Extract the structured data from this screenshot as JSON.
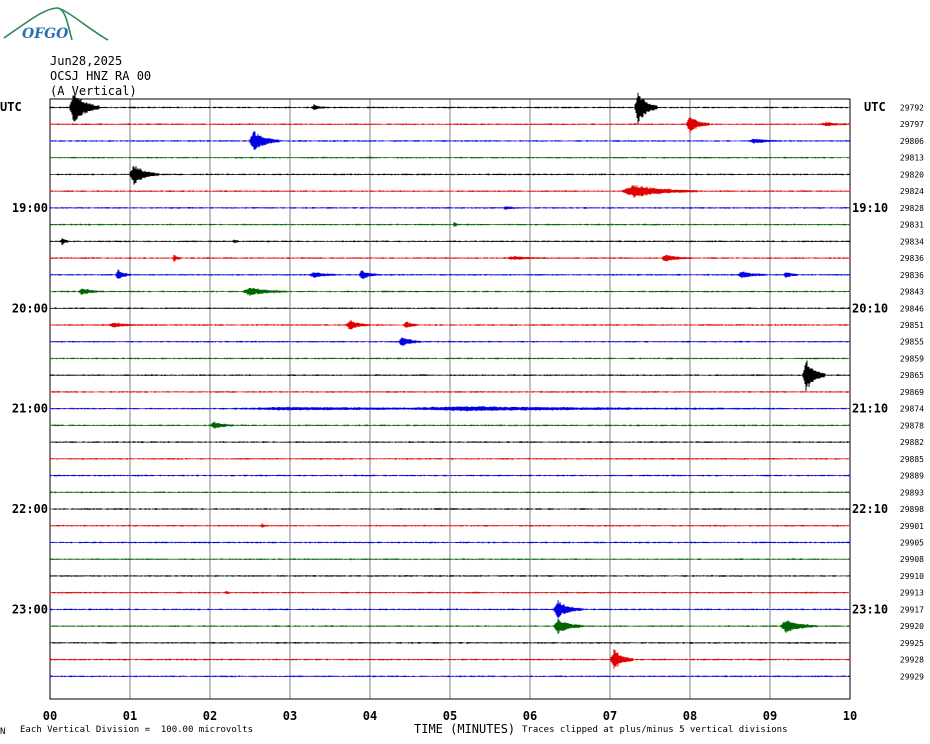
{
  "header": {
    "date": "Jun28,2025",
    "station": "OCSJ HNZ RA 00",
    "component": "(A Vertical)",
    "utc_left": "UTC",
    "utc_right": "UTC"
  },
  "logo": {
    "text": "OFGO",
    "color": "#2a6fb0"
  },
  "footer": {
    "scale_note": "Each Vertical Division =  100.00 microvolts",
    "clip_note": "Traces clipped at plus/minus 5 vertical divisions",
    "corner_mark": "N"
  },
  "colors": {
    "black": "#000000",
    "red": "#e00000",
    "blue": "#0000e0",
    "green": "#006400",
    "grid": "#808080"
  },
  "chart_data": {
    "type": "line",
    "xlabel": "TIME (MINUTES)",
    "x_ticks": [
      "00",
      "01",
      "02",
      "03",
      "04",
      "05",
      "06",
      "07",
      "08",
      "09",
      "10"
    ],
    "xlim": [
      0,
      10
    ],
    "color_cycle": [
      "black",
      "red",
      "blue",
      "green"
    ],
    "left_time_labels": [
      {
        "row": 6,
        "label": "19:00"
      },
      {
        "row": 12,
        "label": "20:00"
      },
      {
        "row": 18,
        "label": "21:00"
      },
      {
        "row": 24,
        "label": "22:00"
      },
      {
        "row": 30,
        "label": "23:00"
      }
    ],
    "right_time_labels": [
      {
        "row": 6,
        "label": "19:10"
      },
      {
        "row": 12,
        "label": "20:10"
      },
      {
        "row": 18,
        "label": "21:10"
      },
      {
        "row": 24,
        "label": "22:10"
      },
      {
        "row": 30,
        "label": "23:10"
      }
    ],
    "right_counts": [
      "29792",
      "29797",
      "29806",
      "29813",
      "29820",
      "29824",
      "29828",
      "29831",
      "29834",
      "29836",
      "29836",
      "29843",
      "29846",
      "29851",
      "29855",
      "29859",
      "29865",
      "29869",
      "29874",
      "29878",
      "29882",
      "29885",
      "29889",
      "29893",
      "29898",
      "29901",
      "29905",
      "29908",
      "29910",
      "29913",
      "29917",
      "29920",
      "29925",
      "29928",
      "29929"
    ],
    "events": [
      {
        "row": 0,
        "x": 0.3,
        "amp": 5,
        "dur": 0.2
      },
      {
        "row": 0,
        "x": 7.35,
        "amp": 5,
        "dur": 0.15
      },
      {
        "row": 0,
        "x": 3.3,
        "amp": 0.8,
        "dur": 0.1
      },
      {
        "row": 1,
        "x": 8.0,
        "amp": 2.5,
        "dur": 0.15
      },
      {
        "row": 1,
        "x": 9.7,
        "amp": 0.5,
        "dur": 0.2
      },
      {
        "row": 2,
        "x": 2.55,
        "amp": 3,
        "dur": 0.2
      },
      {
        "row": 2,
        "x": 8.8,
        "amp": 0.6,
        "dur": 0.2
      },
      {
        "row": 4,
        "x": 1.05,
        "amp": 3,
        "dur": 0.2
      },
      {
        "row": 5,
        "x": 7.3,
        "amp": 1.8,
        "dur": 0.5
      },
      {
        "row": 6,
        "x": 5.7,
        "amp": 0.4,
        "dur": 0.1
      },
      {
        "row": 7,
        "x": 5.05,
        "amp": 0.6,
        "dur": 0.05
      },
      {
        "row": 8,
        "x": 0.15,
        "amp": 1.2,
        "dur": 0.05
      },
      {
        "row": 8,
        "x": 2.3,
        "amp": 0.6,
        "dur": 0.05
      },
      {
        "row": 9,
        "x": 1.55,
        "amp": 1.2,
        "dur": 0.05
      },
      {
        "row": 9,
        "x": 7.7,
        "amp": 1.0,
        "dur": 0.2
      },
      {
        "row": 9,
        "x": 5.8,
        "amp": 0.4,
        "dur": 0.3
      },
      {
        "row": 10,
        "x": 0.85,
        "amp": 1.5,
        "dur": 0.1
      },
      {
        "row": 10,
        "x": 3.3,
        "amp": 0.8,
        "dur": 0.2
      },
      {
        "row": 10,
        "x": 3.9,
        "amp": 1.2,
        "dur": 0.15
      },
      {
        "row": 10,
        "x": 8.65,
        "amp": 0.9,
        "dur": 0.2
      },
      {
        "row": 10,
        "x": 9.2,
        "amp": 0.8,
        "dur": 0.1
      },
      {
        "row": 11,
        "x": 0.4,
        "amp": 1.0,
        "dur": 0.15
      },
      {
        "row": 11,
        "x": 2.5,
        "amp": 1.1,
        "dur": 0.3
      },
      {
        "row": 13,
        "x": 0.8,
        "amp": 0.6,
        "dur": 0.2
      },
      {
        "row": 13,
        "x": 3.75,
        "amp": 1.5,
        "dur": 0.15
      },
      {
        "row": 13,
        "x": 4.45,
        "amp": 1.0,
        "dur": 0.1
      },
      {
        "row": 14,
        "x": 4.4,
        "amp": 1.4,
        "dur": 0.15
      },
      {
        "row": 16,
        "x": 9.45,
        "amp": 5,
        "dur": 0.15
      },
      {
        "row": 18,
        "x": 5.2,
        "amp": 0.5,
        "dur": 2.4
      },
      {
        "row": 18,
        "x": 3.0,
        "amp": 0.35,
        "dur": 2.5
      },
      {
        "row": 19,
        "x": 2.05,
        "amp": 1.0,
        "dur": 0.15
      },
      {
        "row": 25,
        "x": 2.65,
        "amp": 0.5,
        "dur": 0.05
      },
      {
        "row": 29,
        "x": 2.2,
        "amp": 0.4,
        "dur": 0.05
      },
      {
        "row": 30,
        "x": 6.35,
        "amp": 2.5,
        "dur": 0.2
      },
      {
        "row": 31,
        "x": 6.35,
        "amp": 2.2,
        "dur": 0.2
      },
      {
        "row": 31,
        "x": 9.2,
        "amp": 1.8,
        "dur": 0.25
      },
      {
        "row": 33,
        "x": 7.05,
        "amp": 3,
        "dur": 0.15
      }
    ]
  }
}
